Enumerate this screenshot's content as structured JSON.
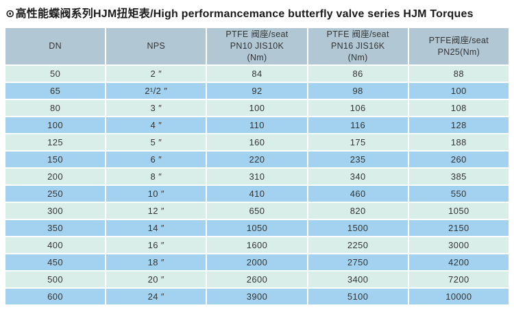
{
  "title": {
    "icon": "⊙",
    "text": "高性能蝶阀系列HJM扭矩表/High performancemance butterfly valve series HJM Torques"
  },
  "colors": {
    "header_bg": "#b1c7d4",
    "row_mint": "#d9eee8",
    "row_blue": "#a2d2ef",
    "separator": "#ffffff",
    "text": "#333333"
  },
  "table": {
    "headers": [
      "DN",
      "NPS",
      "PTFE 阀座/seat\nPN10 JIS10K\n(Nm)",
      "PTFE 阀座/seat\nPN16 JIS16K\n(Nm)",
      "PTFE阀座/seat\nPN25(Nm)"
    ],
    "rows": [
      [
        "50",
        "2 ″",
        "84",
        "86",
        "88"
      ],
      [
        "65",
        "2¹/2 ″",
        "92",
        "98",
        "100"
      ],
      [
        "80",
        "3 ″",
        "100",
        "106",
        "108"
      ],
      [
        "100",
        "4 ″",
        "110",
        "116",
        "128"
      ],
      [
        "125",
        "5 ″",
        "160",
        "175",
        "188"
      ],
      [
        "150",
        "6 ″",
        "220",
        "235",
        "260"
      ],
      [
        "200",
        "8 ″",
        "310",
        "340",
        "385"
      ],
      [
        "250",
        "10 ″",
        "410",
        "460",
        "550"
      ],
      [
        "300",
        "12 ″",
        "650",
        "820",
        "1050"
      ],
      [
        "350",
        "14 ″",
        "1050",
        "1500",
        "2150"
      ],
      [
        "400",
        "16 ″",
        "1600",
        "2250",
        "3000"
      ],
      [
        "450",
        "18 ″",
        "2000",
        "2750",
        "4200"
      ],
      [
        "500",
        "20 ″",
        "2600",
        "3400",
        "7200"
      ],
      [
        "600",
        "24 ″",
        "3900",
        "5100",
        "10000"
      ]
    ]
  }
}
